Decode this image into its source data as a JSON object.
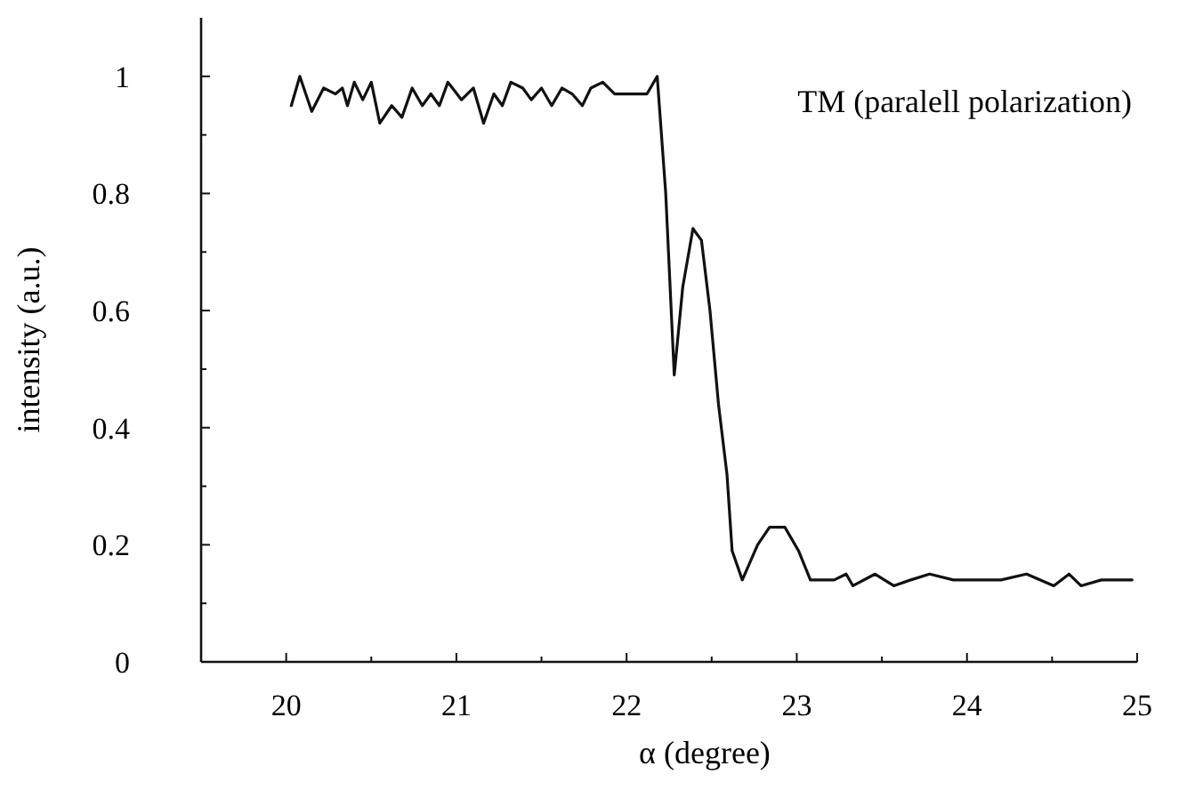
{
  "chart_data": {
    "type": "line",
    "xlabel": "α (degree)",
    "ylabel": "intensity (a.u.)",
    "annotations": [
      "TM (paralell polarization)"
    ],
    "xlim": [
      19.5,
      25
    ],
    "ylim": [
      0,
      1.1
    ],
    "xticks": [
      20,
      {
        "value": 20.5,
        "label": null
      },
      21,
      {
        "value": 21.5,
        "label": null
      },
      22,
      {
        "value": 22.5,
        "label": null
      },
      23,
      {
        "value": 23.5,
        "label": null
      },
      24,
      {
        "value": 24.5,
        "label": null
      },
      25
    ],
    "yticks": [
      0,
      {
        "value": 0.1,
        "label": null
      },
      0.2,
      {
        "value": 0.3,
        "label": null
      },
      0.4,
      {
        "value": 0.5,
        "label": null
      },
      0.6,
      {
        "value": 0.7,
        "label": null
      },
      0.8,
      {
        "value": 0.9,
        "label": null
      },
      1
    ],
    "grid": false,
    "marker": "none",
    "line_style": "solid",
    "series": [
      {
        "color": "#111111",
        "x": [
          20.03,
          20.08,
          20.15,
          20.22,
          20.29,
          20.33,
          20.36,
          20.4,
          20.45,
          20.5,
          20.55,
          20.62,
          20.68,
          20.74,
          20.8,
          20.85,
          20.9,
          20.95,
          21.03,
          21.1,
          21.16,
          21.22,
          21.27,
          21.32,
          21.39,
          21.44,
          21.5,
          21.56,
          21.62,
          21.68,
          21.74,
          21.79,
          21.86,
          21.93,
          22.04,
          22.12,
          22.18,
          22.23,
          22.28,
          22.33,
          22.39,
          22.44,
          22.49,
          22.54,
          22.59,
          22.62,
          22.68,
          22.77,
          22.84,
          22.93,
          23.01,
          23.08,
          23.22,
          23.29,
          23.33,
          23.46,
          23.57,
          23.67,
          23.78,
          23.92,
          24.06,
          24.2,
          24.35,
          24.51,
          24.6,
          24.67,
          24.79,
          24.9,
          24.97
        ],
        "values": [
          0.95,
          1.0,
          0.94,
          0.98,
          0.97,
          0.98,
          0.95,
          0.99,
          0.96,
          0.99,
          0.92,
          0.95,
          0.93,
          0.98,
          0.95,
          0.97,
          0.95,
          0.99,
          0.96,
          0.98,
          0.92,
          0.97,
          0.95,
          0.99,
          0.98,
          0.96,
          0.98,
          0.95,
          0.98,
          0.97,
          0.95,
          0.98,
          0.99,
          0.97,
          0.97,
          0.97,
          1.0,
          0.8,
          0.49,
          0.64,
          0.74,
          0.72,
          0.6,
          0.44,
          0.32,
          0.19,
          0.14,
          0.2,
          0.23,
          0.23,
          0.19,
          0.14,
          0.14,
          0.15,
          0.13,
          0.15,
          0.13,
          0.14,
          0.15,
          0.14,
          0.14,
          0.14,
          0.15,
          0.13,
          0.15,
          0.13,
          0.14,
          0.14,
          0.14
        ]
      }
    ]
  }
}
